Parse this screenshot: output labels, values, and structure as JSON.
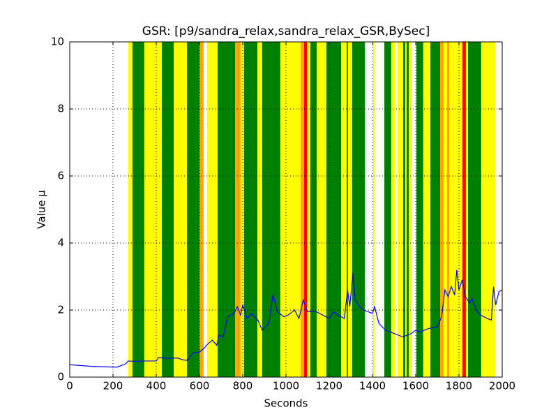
{
  "chart_data": {
    "type": "line",
    "title": "GSR: [p9/sandra_relax,sandra_relax_GSR,BySec]",
    "x_label": "Seconds",
    "y_label": "Value µ",
    "xlim": [
      0,
      2000
    ],
    "xticks": [
      0,
      200,
      400,
      600,
      800,
      1000,
      1200,
      1400,
      1600,
      1800,
      2000
    ],
    "ylim": [
      0,
      10
    ],
    "yticks": [
      0,
      2,
      4,
      6,
      8,
      10
    ],
    "grid": true,
    "bands": [
      {
        "start": 271,
        "end": 290,
        "color": "#ffff00"
      },
      {
        "start": 290,
        "end": 345,
        "color": "#008000"
      },
      {
        "start": 345,
        "end": 426,
        "color": "#ffff00"
      },
      {
        "start": 426,
        "end": 481,
        "color": "#008000"
      },
      {
        "start": 481,
        "end": 542,
        "color": "#ffff00"
      },
      {
        "start": 542,
        "end": 600,
        "color": "#008000"
      },
      {
        "start": 600,
        "end": 619,
        "color": "#ffa500"
      },
      {
        "start": 635,
        "end": 684,
        "color": "#ffff00"
      },
      {
        "start": 684,
        "end": 765,
        "color": "#008000"
      },
      {
        "start": 765,
        "end": 790,
        "color": "#ffa500"
      },
      {
        "start": 790,
        "end": 806,
        "color": "#ffff00"
      },
      {
        "start": 806,
        "end": 868,
        "color": "#008000"
      },
      {
        "start": 868,
        "end": 890,
        "color": "#ffff00"
      },
      {
        "start": 890,
        "end": 974,
        "color": "#008000"
      },
      {
        "start": 974,
        "end": 1068,
        "color": "#ffff00"
      },
      {
        "start": 1068,
        "end": 1084,
        "color": "#ffa500"
      },
      {
        "start": 1084,
        "end": 1097,
        "color": "#ff0000"
      },
      {
        "start": 1097,
        "end": 1113,
        "color": "#ffff00"
      },
      {
        "start": 1113,
        "end": 1142,
        "color": "#008000"
      },
      {
        "start": 1142,
        "end": 1187,
        "color": "#ffff00"
      },
      {
        "start": 1187,
        "end": 1255,
        "color": "#008000"
      },
      {
        "start": 1255,
        "end": 1281,
        "color": "#ffff00"
      },
      {
        "start": 1281,
        "end": 1287,
        "color": "#008000"
      },
      {
        "start": 1287,
        "end": 1306,
        "color": "#ffff00"
      },
      {
        "start": 1306,
        "end": 1365,
        "color": "#008000"
      },
      {
        "start": 1403,
        "end": 1410,
        "color": "#ffff00"
      },
      {
        "start": 1455,
        "end": 1487,
        "color": "#008000"
      },
      {
        "start": 1487,
        "end": 1503,
        "color": "#ffff00"
      },
      {
        "start": 1516,
        "end": 1542,
        "color": "#ffff00"
      },
      {
        "start": 1542,
        "end": 1552,
        "color": "#008000"
      },
      {
        "start": 1552,
        "end": 1558,
        "color": "#ffff00"
      },
      {
        "start": 1558,
        "end": 1568,
        "color": "#008000"
      },
      {
        "start": 1568,
        "end": 1580,
        "color": "#ffff00"
      },
      {
        "start": 1603,
        "end": 1635,
        "color": "#008000"
      },
      {
        "start": 1635,
        "end": 1668,
        "color": "#ffff00"
      },
      {
        "start": 1668,
        "end": 1713,
        "color": "#008000"
      },
      {
        "start": 1713,
        "end": 1729,
        "color": "#ffa500"
      },
      {
        "start": 1729,
        "end": 1745,
        "color": "#ffff00"
      },
      {
        "start": 1745,
        "end": 1755,
        "color": "#ffa500"
      },
      {
        "start": 1755,
        "end": 1816,
        "color": "#ffff00"
      },
      {
        "start": 1816,
        "end": 1832,
        "color": "#ff0000"
      },
      {
        "start": 1832,
        "end": 1842,
        "color": "#ffff00"
      },
      {
        "start": 1842,
        "end": 1903,
        "color": "#008000"
      },
      {
        "start": 1903,
        "end": 1968,
        "color": "#ffff00"
      }
    ],
    "series": [
      {
        "color": "#0000ff",
        "x": [
          0,
          100,
          200,
          220,
          260,
          270,
          300,
          350,
          400,
          410,
          450,
          500,
          520,
          540,
          550,
          570,
          600,
          620,
          640,
          660,
          680,
          690,
          710,
          730,
          760,
          775,
          790,
          800,
          820,
          840,
          870,
          890,
          920,
          940,
          960,
          990,
          1010,
          1040,
          1060,
          1080,
          1100,
          1140,
          1170,
          1200,
          1220,
          1240,
          1270,
          1285,
          1295,
          1310,
          1320,
          1340,
          1360,
          1400,
          1410,
          1430,
          1460,
          1500,
          1520,
          1540,
          1560,
          1580,
          1600,
          1620,
          1660,
          1700,
          1720,
          1735,
          1750,
          1765,
          1780,
          1790,
          1800,
          1815,
          1830,
          1850,
          1860,
          1880,
          1900,
          1930,
          1950,
          1960,
          1970,
          1985,
          2000
        ],
        "values": [
          0.37,
          0.32,
          0.3,
          0.3,
          0.4,
          0.48,
          0.47,
          0.48,
          0.48,
          0.58,
          0.56,
          0.57,
          0.52,
          0.5,
          0.55,
          0.72,
          0.75,
          0.85,
          1.0,
          1.1,
          0.95,
          1.25,
          1.2,
          1.8,
          1.9,
          2.1,
          1.85,
          2.15,
          1.75,
          1.9,
          1.7,
          1.4,
          1.6,
          2.45,
          1.95,
          1.8,
          1.85,
          2.0,
          1.75,
          2.3,
          1.95,
          1.95,
          1.85,
          1.75,
          1.95,
          1.85,
          1.75,
          2.6,
          2.1,
          3.1,
          2.3,
          2.1,
          2.0,
          1.9,
          2.1,
          1.6,
          1.4,
          1.3,
          1.25,
          1.2,
          1.25,
          1.3,
          1.4,
          1.35,
          1.45,
          1.5,
          1.8,
          2.6,
          2.4,
          2.7,
          2.45,
          3.2,
          2.6,
          2.9,
          2.4,
          2.2,
          2.35,
          2.0,
          1.85,
          1.75,
          1.7,
          2.7,
          2.15,
          2.55,
          2.6
        ]
      }
    ]
  }
}
